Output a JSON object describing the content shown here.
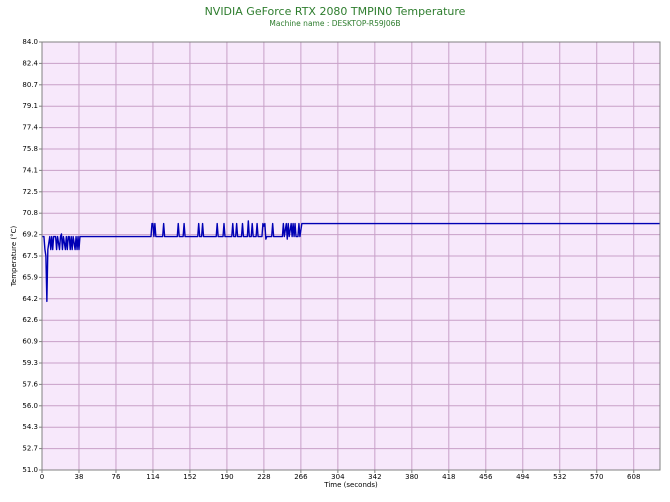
{
  "chart_data": {
    "type": "line",
    "title": "NVIDIA GeForce RTX 2080 TMPIN0 Temperature",
    "subtitle": "Machine name : DESKTOP-R59J06B",
    "x_label": "Time (seconds)",
    "y_label": "Temperature (°C)",
    "grid": true,
    "xlim": [
      0,
      635
    ],
    "ylim": [
      51,
      84
    ],
    "xticks": [
      0,
      38,
      76,
      114,
      152,
      190,
      228,
      266,
      304,
      342,
      380,
      418,
      456,
      494,
      532,
      570,
      608
    ],
    "yticks": [
      {
        "value": 84,
        "label": "84.0"
      },
      {
        "value": 82.35,
        "label": "82.4"
      },
      {
        "value": 80.7,
        "label": "80.7"
      },
      {
        "value": 79.05,
        "label": "79.1"
      },
      {
        "value": 77.4,
        "label": "77.4"
      },
      {
        "value": 75.75,
        "label": "75.8"
      },
      {
        "value": 74.1,
        "label": "74.1"
      },
      {
        "value": 72.45,
        "label": "72.5"
      },
      {
        "value": 70.8,
        "label": "70.8"
      },
      {
        "value": 69.15,
        "label": "69.2"
      },
      {
        "value": 67.5,
        "label": "67.5"
      },
      {
        "value": 65.85,
        "label": "65.9"
      },
      {
        "value": 64.2,
        "label": "64.2"
      },
      {
        "value": 62.55,
        "label": "62.6"
      },
      {
        "value": 60.9,
        "label": "60.9"
      },
      {
        "value": 59.25,
        "label": "59.3"
      },
      {
        "value": 57.6,
        "label": "57.6"
      },
      {
        "value": 55.95,
        "label": "56.0"
      },
      {
        "value": 54.3,
        "label": "54.3"
      },
      {
        "value": 52.65,
        "label": "52.7"
      },
      {
        "value": 51,
        "label": "51.0"
      }
    ],
    "series": [
      {
        "name": "TMPIN0",
        "color": "#0000b4",
        "x": [
          0,
          2,
          3,
          4,
          5,
          6,
          7,
          8,
          9,
          10,
          11,
          12,
          14,
          15,
          16,
          18,
          19,
          20,
          21,
          22,
          24,
          25,
          26,
          27,
          28,
          29,
          30,
          31,
          32,
          34,
          35,
          36,
          37,
          38,
          39,
          40,
          112,
          113,
          114,
          115,
          116,
          117,
          124,
          125,
          126,
          139,
          140,
          141,
          145,
          146,
          147,
          160,
          161,
          162,
          164,
          165,
          166,
          179,
          180,
          181,
          186,
          187,
          188,
          195,
          196,
          197,
          199,
          200,
          201,
          205,
          206,
          207,
          211,
          212,
          213,
          215,
          216,
          217,
          220,
          221,
          222,
          226,
          227,
          228,
          229,
          230,
          231,
          236,
          237,
          238,
          247,
          248,
          249,
          251,
          252,
          253,
          254,
          256,
          257,
          258,
          259,
          260,
          261,
          263,
          264,
          265,
          267,
          635
        ],
        "values": [
          69,
          69,
          68,
          67.5,
          64,
          68,
          68.5,
          69,
          68,
          69,
          68,
          69,
          69,
          68,
          69,
          68,
          69,
          69.2,
          68,
          69,
          68,
          69,
          68,
          69,
          69,
          68,
          69,
          68,
          69,
          68,
          69,
          68,
          69,
          68,
          69,
          69,
          69,
          70,
          70,
          69,
          70,
          69,
          69,
          70,
          69,
          69,
          70,
          69,
          69,
          70,
          69,
          69,
          70,
          69,
          69,
          70,
          69,
          69,
          70,
          69,
          69,
          70,
          69,
          69,
          70,
          69,
          69,
          70,
          69,
          69,
          70,
          69,
          69,
          70.2,
          69,
          69,
          70,
          69,
          69,
          70,
          69,
          69,
          70,
          69.8,
          70,
          68.8,
          69,
          69,
          70,
          69,
          69,
          70,
          69,
          70,
          68.8,
          70,
          69,
          70,
          69,
          70,
          69,
          70,
          69,
          69,
          70,
          69,
          70,
          70
        ]
      }
    ]
  }
}
